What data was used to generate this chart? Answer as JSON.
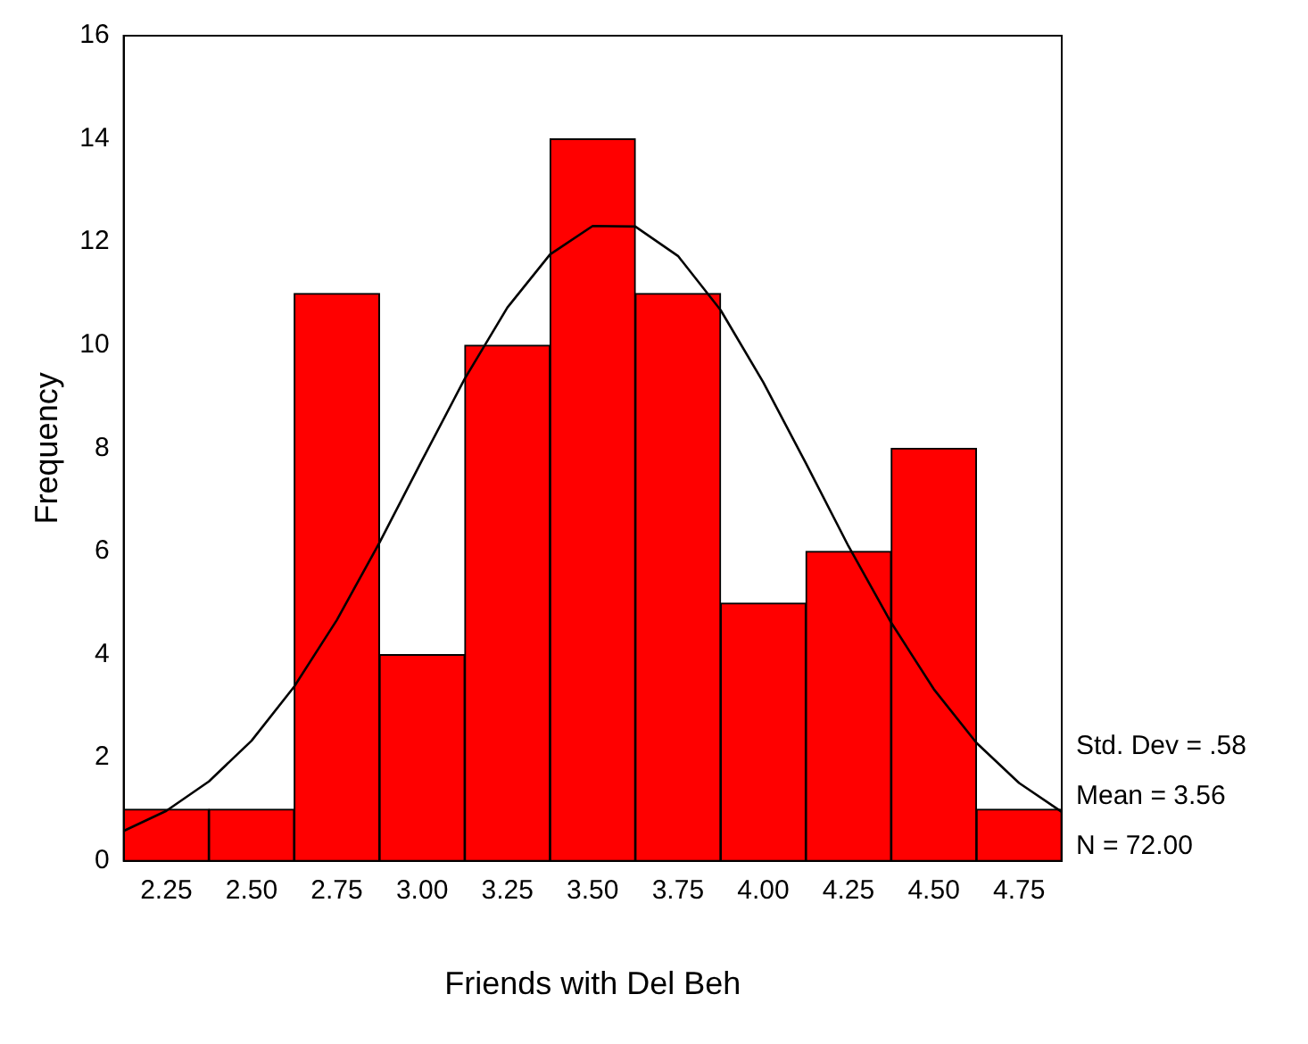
{
  "chart_data": {
    "type": "histogram",
    "xlabel": "Friends with Del Beh",
    "ylabel": "Frequency",
    "bins": [
      2.125,
      2.375,
      2.625,
      2.875,
      3.125,
      3.375,
      3.625,
      3.875,
      4.125,
      4.375,
      4.625,
      4.875
    ],
    "values": [
      1,
      1,
      11,
      4,
      10,
      14,
      11,
      5,
      6,
      8,
      1
    ],
    "color": "#ff0000",
    "series": [
      {
        "type": "line",
        "color": "#000000",
        "x": [
          2.125,
          2.25,
          2.375,
          2.5,
          2.625,
          2.75,
          2.875,
          3.0,
          3.125,
          3.25,
          3.375,
          3.5,
          3.625,
          3.75,
          3.875,
          4.0,
          4.125,
          4.25,
          4.375,
          4.5,
          4.625,
          4.75,
          4.875
        ],
        "values": [
          0.58,
          0.97,
          1.54,
          2.33,
          3.38,
          4.67,
          6.17,
          7.77,
          9.35,
          10.73,
          11.76,
          12.31,
          12.3,
          11.73,
          10.68,
          9.28,
          7.71,
          6.1,
          4.62,
          3.33,
          2.29,
          1.51,
          0.95
        ]
      }
    ],
    "xlim": [
      2.125,
      4.875
    ],
    "xticks": [
      {
        "value": 2.25,
        "label": "2.25"
      },
      {
        "value": 2.5,
        "label": "2.50"
      },
      {
        "value": 2.75,
        "label": "2.75"
      },
      {
        "value": 3.0,
        "label": "3.00"
      },
      {
        "value": 3.25,
        "label": "3.25"
      },
      {
        "value": 3.5,
        "label": "3.50"
      },
      {
        "value": 3.75,
        "label": "3.75"
      },
      {
        "value": 4.0,
        "label": "4.00"
      },
      {
        "value": 4.25,
        "label": "4.25"
      },
      {
        "value": 4.5,
        "label": "4.50"
      },
      {
        "value": 4.75,
        "label": "4.75"
      }
    ],
    "ylim": [
      0,
      16
    ],
    "yticks": [
      0,
      2,
      4,
      6,
      8,
      10,
      12,
      14,
      16
    ],
    "annotations": [
      "Std. Dev = .58",
      "Mean = 3.56",
      "N = 72.00"
    ],
    "grid": false,
    "legend": false,
    "marker": "none",
    "line_style": "solid"
  }
}
